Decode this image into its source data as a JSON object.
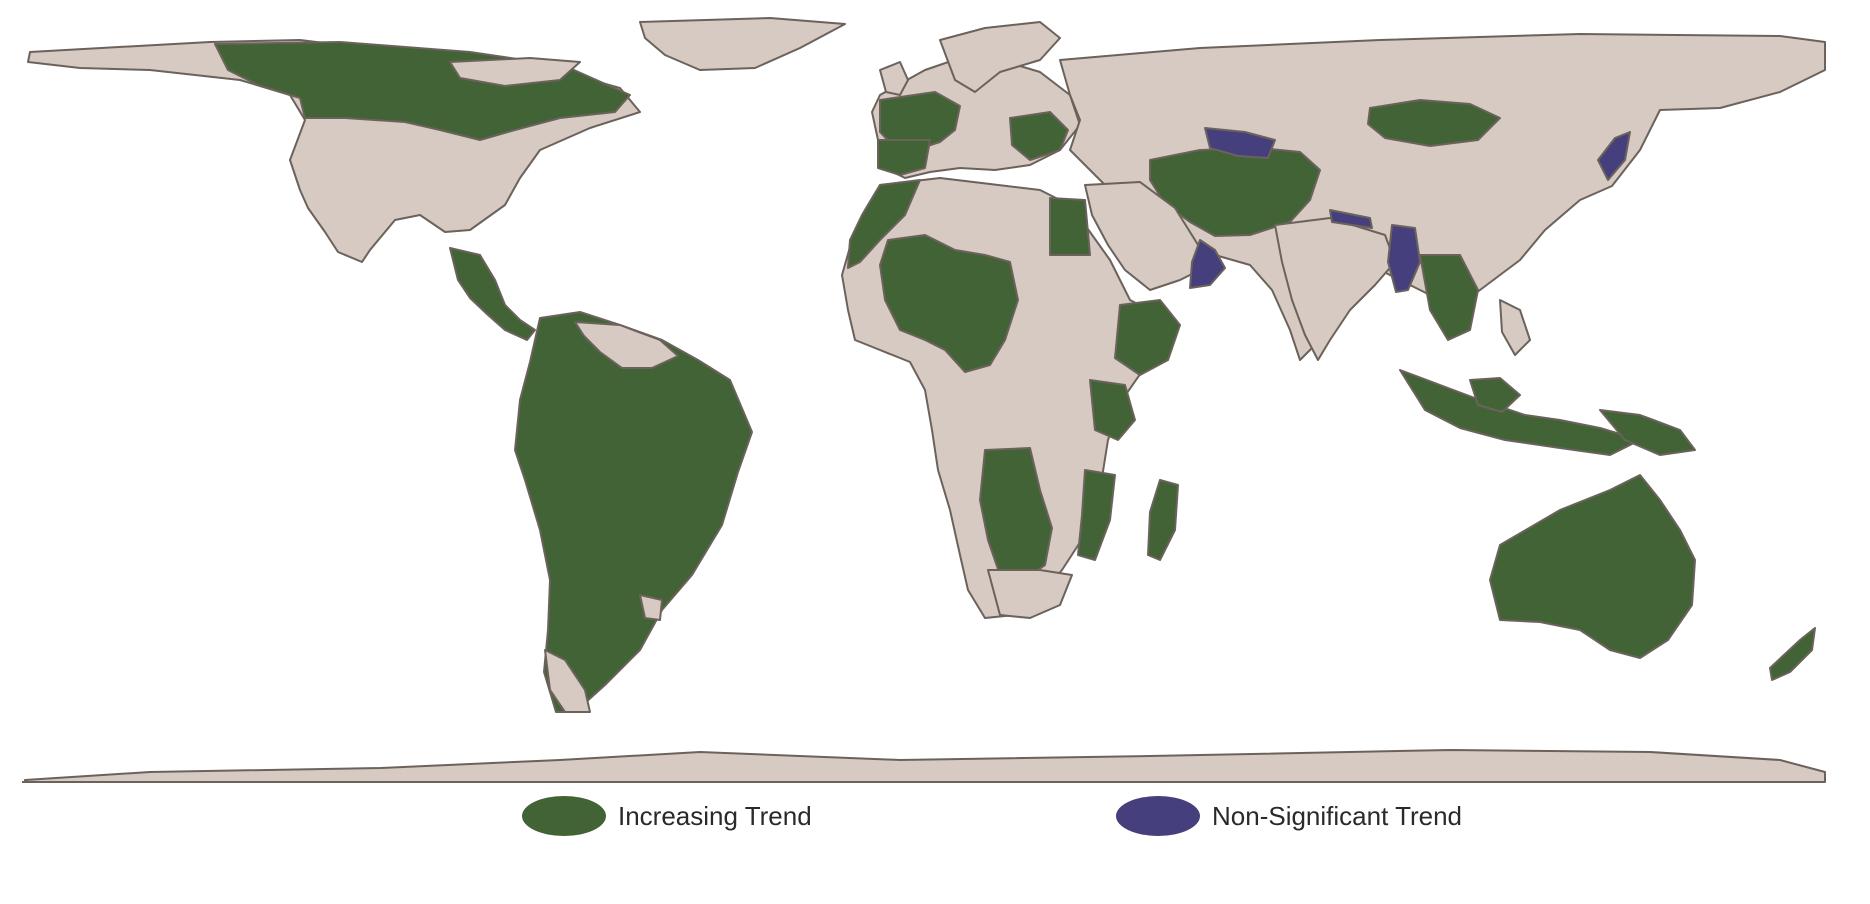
{
  "colors": {
    "background": "#ffffff",
    "land_default": "#d6cac3",
    "border": "#6b625c",
    "increasing": "#416335",
    "non_significant": "#463f7e"
  },
  "legend": [
    {
      "label": "Increasing Trend",
      "color": "#416335",
      "icon": "ellipse-swatch"
    },
    {
      "label": "Non-Significant Trend",
      "color": "#463f7e",
      "icon": "ellipse-swatch"
    }
  ]
}
